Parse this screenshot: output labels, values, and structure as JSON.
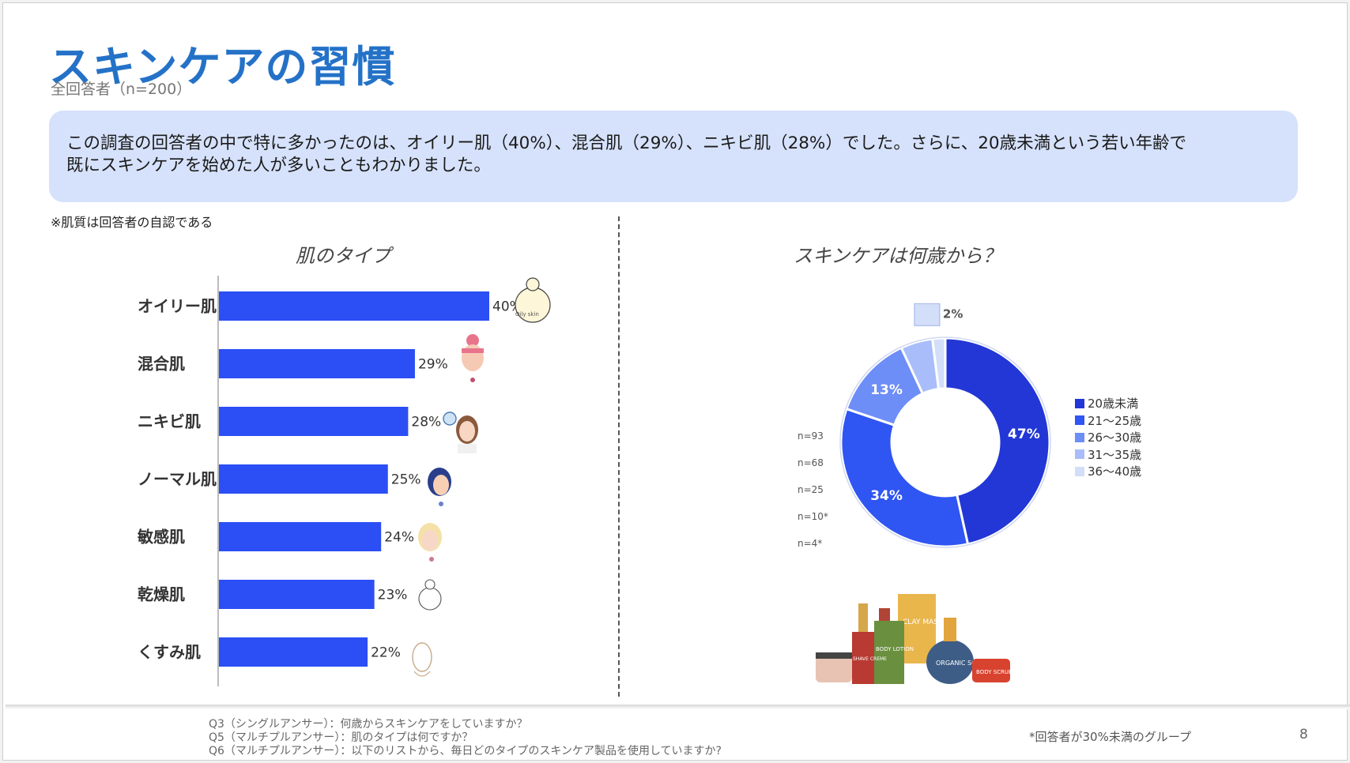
{
  "header": {
    "title": "スキンケアの習慣",
    "subtitle": "全回答者（n=200）"
  },
  "callout": {
    "line1": "この調査の回答者の中で特に多かったのは、オイリー肌（40%）、混合肌（29%）、ニキビ肌（28%）でした。さらに、20歳未満という若い年齢で",
    "line2": "既にスキンケアを始めた人が多いこともわかりました。"
  },
  "note_left": "※肌質は回答者の自認である",
  "chart_data": [
    {
      "type": "bar",
      "orientation": "horizontal",
      "title": "肌のタイプ",
      "categories": [
        "オイリー肌",
        "混合肌",
        "ニキビ肌",
        "ノーマル肌",
        "敏感肌",
        "乾燥肌",
        "くすみ肌"
      ],
      "values": [
        40,
        29,
        28,
        25,
        24,
        23,
        22
      ],
      "value_labels": [
        "40%",
        "29%",
        "28%",
        "25%",
        "24%",
        "23%",
        "22%"
      ],
      "unit": "%",
      "color": "#2b4ef5",
      "xlim": [
        0,
        40
      ]
    },
    {
      "type": "pie",
      "style": "donut",
      "title": "スキンケアは何歳から？",
      "labels": [
        "20歳未満",
        "21～25歳",
        "26～30歳",
        "31～35歳",
        "36～40歳"
      ],
      "values": [
        47,
        34,
        13,
        5,
        2
      ],
      "value_labels": [
        "47%",
        "34%",
        "13%",
        "",
        "2%"
      ],
      "counts": [
        "n=93",
        "n=68",
        "n=25",
        "n=10*",
        "n=4*"
      ],
      "colors": [
        "#2237d6",
        "#2f55f2",
        "#6d8df7",
        "#a9bdfa",
        "#d3def9"
      ],
      "legend_position": "right"
    }
  ],
  "footer": {
    "questions": [
      "Q3（シングルアンサー）：何歳からスキンケアをしていますか？",
      "Q5（マルチプルアンサー）：肌のタイプは何ですか？",
      "Q6（マルチプルアンサー）：以下のリストから、毎日どのタイプのスキンケア製品を使用していますか?"
    ],
    "note": "*回答者が30%未満のグループ",
    "page": "8"
  },
  "illustrations": {
    "oily_face_text": "Oily skin",
    "products": [
      "CLAY MASK",
      "BODY LOTION",
      "SHAVE CREME",
      "ORGANIC SOAP",
      "BODY SCRUB"
    ]
  }
}
